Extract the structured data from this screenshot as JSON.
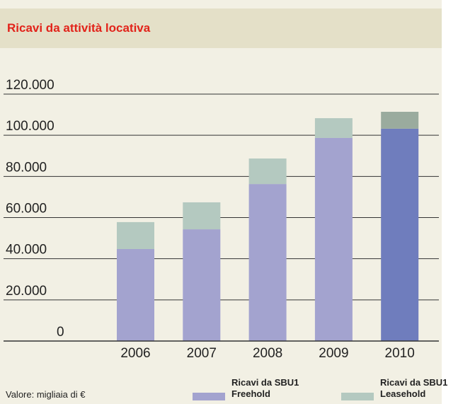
{
  "chart_data": {
    "type": "stacked_bar",
    "title": "Ricavi da attività locativa",
    "note": "Valore: migliaia di €",
    "categories": [
      "2006",
      "2007",
      "2008",
      "2009",
      "2010"
    ],
    "series": [
      {
        "name": "Ricavi da SBU1 Freehold",
        "color": "#a3a3cf",
        "colors": [
          "#a3a3cf",
          "#a3a3cf",
          "#a3a3cf",
          "#a3a3cf",
          "#6f7dbd"
        ],
        "values": [
          44700,
          54300,
          76300,
          98700,
          103200
        ]
      },
      {
        "name": "Ricavi da SBU1 Leasehold",
        "color": "#b4c9c0",
        "colors": [
          "#b4c9c0",
          "#b4c9c0",
          "#b4c9c0",
          "#b4c9c0",
          "#9aab9e"
        ],
        "values": [
          13100,
          13100,
          12400,
          9600,
          8200
        ]
      }
    ],
    "ylim": [
      0,
      120000
    ],
    "yticks": [
      0,
      {
        "value": 20000,
        "label": "20.000"
      },
      {
        "value": 40000,
        "label": "40.000"
      },
      {
        "value": 60000,
        "label": "60.000"
      },
      {
        "value": 80000,
        "label": "80.000"
      },
      {
        "value": 100000,
        "label": "100.000"
      },
      {
        "value": 120000,
        "label": "120.000"
      }
    ],
    "grid": true
  }
}
